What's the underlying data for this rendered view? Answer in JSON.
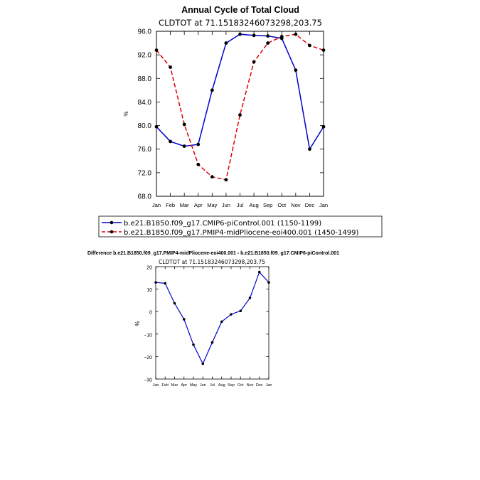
{
  "chart_data": [
    {
      "type": "line",
      "title": "Annual Cycle of Total Cloud",
      "subtitle": "CLDTOT at 71.15183246073298,203.75",
      "ylabel": "%",
      "ylim": [
        68,
        96
      ],
      "yticks": [
        "68.0",
        "72.0",
        "76.0",
        "80.0",
        "84.0",
        "88.0",
        "92.0",
        "96.0"
      ],
      "categories": [
        "Jan",
        "Feb",
        "Mar",
        "Apr",
        "May",
        "Jun",
        "Jul",
        "Aug",
        "Sep",
        "Oct",
        "Nov",
        "Dec",
        "Jan"
      ],
      "series": [
        {
          "name": "b.e21.B1850.f09_g17.CMIP6-piControl.001 (1150-1199)",
          "color": "#0000cc",
          "style": "solid",
          "values": [
            79.8,
            77.3,
            76.5,
            76.8,
            86.0,
            94.0,
            95.5,
            95.3,
            95.2,
            94.8,
            89.4,
            76.0,
            79.8
          ]
        },
        {
          "name": "b.e21.B1850.f09_g17.PMIP4-midPliocene-eoi400.001 (1450-1499)",
          "color": "#dd0000",
          "style": "dashed",
          "values": [
            92.8,
            89.9,
            80.2,
            73.4,
            71.3,
            70.8,
            81.8,
            90.8,
            94.0,
            95.1,
            95.5,
            93.6,
            92.8
          ]
        }
      ]
    },
    {
      "type": "line",
      "title": "Difference b.e21.B1850.f09_g17.PMIP4-midPliocene-eoi400.001 - b.e21.B1850.f09_g17.CMIP6-piControl.001",
      "subtitle": "CLDTOT at 71.15183246073298,203.75",
      "ylabel": "%",
      "ylim": [
        -30,
        20
      ],
      "yticks": [
        "−30",
        "−20",
        "−10",
        "0",
        "10",
        "20"
      ],
      "categories": [
        "Jan",
        "Feb",
        "Mar",
        "Apr",
        "May",
        "Jun",
        "Jul",
        "Aug",
        "Sep",
        "Oct",
        "Nov",
        "Dec",
        "Jan"
      ],
      "series": [
        {
          "name": "Difference",
          "color": "#0000cc",
          "style": "solid",
          "values": [
            13.0,
            12.6,
            3.7,
            -3.4,
            -14.7,
            -23.2,
            -13.7,
            -4.5,
            -1.2,
            0.3,
            6.1,
            17.6,
            13.0
          ]
        }
      ]
    }
  ]
}
